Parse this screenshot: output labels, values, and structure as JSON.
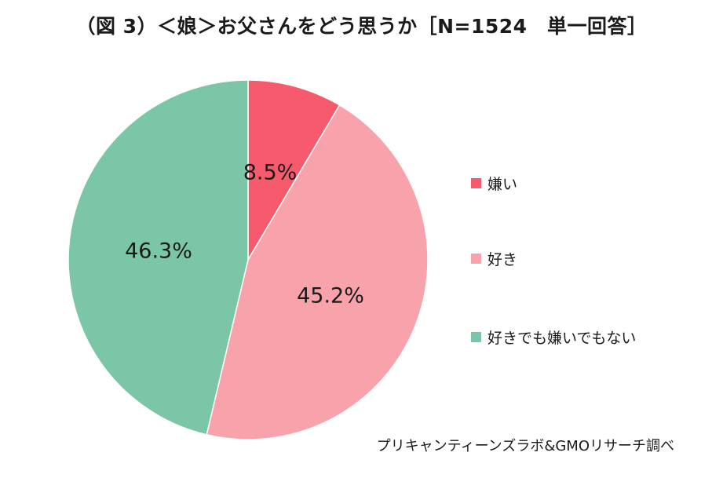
{
  "title": "（図 3）＜娘＞お父さんをどう思うか［N=1524　単一回答］",
  "source": "プリキャンティーンズラボ&GMOリサーチ調べ",
  "chart_data": {
    "type": "pie",
    "categories": [
      "嫌い",
      "好き",
      "好きでも嫌いでもない"
    ],
    "values": [
      8.5,
      45.2,
      46.3
    ],
    "value_labels": [
      "8.5%",
      "45.2%",
      "46.3%"
    ],
    "colors": [
      "#F75A6C",
      "#F8A2AB",
      "#7CC6A8"
    ],
    "start_angle": "12 o'clock",
    "direction": "clockwise",
    "legend_position": "right"
  }
}
